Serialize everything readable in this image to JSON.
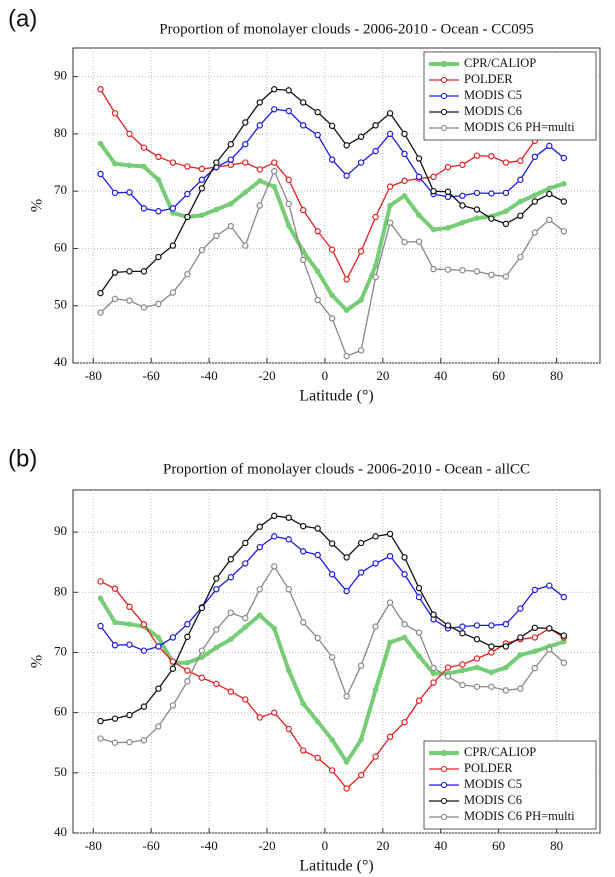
{
  "chart_data": [
    {
      "type": "line",
      "panel_label": "(a)",
      "title": "Proportion of monolayer clouds -   2006-2010 - Ocean - CC095",
      "xlabel": "Latitude (°)",
      "ylabel": "%",
      "xlim": [
        -87,
        95
      ],
      "ylim": [
        40,
        95
      ],
      "xticks": [
        -80,
        -60,
        -40,
        -20,
        0,
        20,
        40,
        60,
        80
      ],
      "yticks": [
        40,
        50,
        60,
        70,
        80,
        90
      ],
      "grid": true,
      "legend": "upper right",
      "x": [
        -77.5,
        -72.5,
        -67.5,
        -62.5,
        -57.5,
        -52.5,
        -47.5,
        -42.5,
        -37.5,
        -32.5,
        -27.5,
        -22.5,
        -17.5,
        -12.5,
        -7.5,
        -2.5,
        2.5,
        7.5,
        12.5,
        17.5,
        22.5,
        27.5,
        32.5,
        37.5,
        42.5,
        47.5,
        52.5,
        57.5,
        62.5,
        67.5,
        72.5,
        77.5,
        82.5
      ],
      "series": [
        {
          "name": "CPR/CALIOP",
          "color": "#77cc77",
          "values": [
            78.3,
            74.8,
            74.5,
            74.3,
            72,
            66.2,
            65.5,
            65.8,
            66.8,
            67.8,
            69.8,
            71.8,
            70.8,
            64,
            59.5,
            56,
            51.8,
            49.2,
            51,
            57,
            67.5,
            69.2,
            65.8,
            63.3,
            63.6,
            64.5,
            65.3,
            65.6,
            66.5,
            68.2,
            69.3,
            70.5,
            71.3
          ]
        },
        {
          "name": "POLDER",
          "color": "#e52020",
          "values": [
            87.8,
            83.6,
            80,
            77.6,
            76,
            75,
            74.3,
            73.9,
            74.2,
            74.6,
            75,
            73.8,
            75,
            72,
            66.7,
            63,
            59.8,
            54.6,
            59.5,
            65.5,
            70.8,
            71.8,
            72.2,
            72.5,
            74.2,
            74.6,
            76.2,
            76.1,
            75,
            75.3,
            78.8,
            null,
            null
          ]
        },
        {
          "name": "MODIS C5",
          "color": "#1a1aee",
          "values": [
            73,
            69.7,
            69.8,
            67,
            66.5,
            67,
            69.5,
            72,
            74.2,
            75.5,
            78.2,
            81.5,
            84.3,
            84,
            81.5,
            79.8,
            75.5,
            72.7,
            75,
            77,
            80,
            76.5,
            72.5,
            69.5,
            69,
            69.2,
            69.7,
            69.6,
            69.7,
            72,
            76,
            77.9,
            75.8
          ]
        },
        {
          "name": "MODIS C6",
          "color": "#111111",
          "values": [
            52.2,
            55.8,
            56,
            56,
            58.5,
            60.5,
            65.5,
            70.5,
            75,
            78.2,
            82,
            85.5,
            87.8,
            87.6,
            85.5,
            83.8,
            81.4,
            78,
            79.5,
            81.5,
            83.6,
            80,
            75.7,
            70,
            69.9,
            67.5,
            66.8,
            65.2,
            64.3,
            65.7,
            68.2,
            69.5,
            68.2
          ]
        },
        {
          "name": "MODIS C6 PH=multi",
          "color": "#888888",
          "values": [
            48.8,
            51.2,
            50.9,
            49.7,
            50.3,
            52.3,
            55.5,
            59.7,
            62.2,
            63.9,
            60.5,
            67.5,
            73.5,
            67.8,
            58,
            51,
            47.8,
            41.2,
            42.2,
            55,
            64.5,
            61.1,
            61.2,
            56.4,
            56.3,
            56.2,
            56,
            55.4,
            55.1,
            58.5,
            62.8,
            65,
            63
          ]
        }
      ]
    },
    {
      "type": "line",
      "panel_label": "(b)",
      "title": "Proportion of monolayer clouds -   2006-2010 - Ocean - allCC",
      "xlabel": "Latitude (°)",
      "ylabel": "%",
      "xlim": [
        -87,
        95
      ],
      "ylim": [
        40,
        97
      ],
      "xticks": [
        -80,
        -60,
        -40,
        -20,
        0,
        20,
        40,
        60,
        80
      ],
      "yticks": [
        40,
        50,
        60,
        70,
        80,
        90
      ],
      "grid": true,
      "legend": "lower right",
      "x": [
        -77.5,
        -72.5,
        -67.5,
        -62.5,
        -57.5,
        -52.5,
        -47.5,
        -42.5,
        -37.5,
        -32.5,
        -27.5,
        -22.5,
        -17.5,
        -12.5,
        -7.5,
        -2.5,
        2.5,
        7.5,
        12.5,
        17.5,
        22.5,
        27.5,
        32.5,
        37.5,
        42.5,
        47.5,
        52.5,
        57.5,
        62.5,
        67.5,
        72.5,
        77.5,
        82.5
      ],
      "series": [
        {
          "name": "CPR/CALIOP",
          "color": "#77cc77",
          "values": [
            79,
            75,
            74.7,
            74.3,
            72.5,
            68.3,
            68.3,
            69.2,
            70.8,
            72.2,
            74.2,
            76.2,
            74,
            67,
            61.5,
            58.5,
            55.5,
            51.8,
            55.5,
            63.8,
            71.7,
            72.5,
            69.4,
            66.5,
            66.5,
            67,
            67.5,
            66.7,
            67.5,
            69.6,
            70.2,
            71,
            71.8
          ]
        },
        {
          "name": "POLDER",
          "color": "#e52020",
          "values": [
            81.8,
            80.6,
            77.6,
            74.7,
            71,
            68.5,
            67,
            65.8,
            64.8,
            63.5,
            62.2,
            59.2,
            60,
            57.3,
            53.7,
            52.5,
            50.4,
            47.4,
            49.6,
            52.7,
            56,
            58.4,
            62,
            65,
            67.5,
            68,
            69,
            70,
            71.5,
            72.2,
            72.5,
            74,
            72.5
          ]
        },
        {
          "name": "MODIS C5",
          "color": "#1a1aee",
          "values": [
            74.4,
            71.2,
            71.3,
            70.3,
            71,
            72.5,
            74.7,
            77.5,
            80.5,
            82.5,
            84.8,
            87.5,
            89.3,
            88.8,
            86.8,
            86.2,
            83,
            80.2,
            83.3,
            84.8,
            86,
            83,
            79.2,
            75.5,
            74,
            74.3,
            74.5,
            74.5,
            74.7,
            77.3,
            80.4,
            81.1,
            79.2
          ]
        },
        {
          "name": "MODIS C6",
          "color": "#111111",
          "values": [
            58.6,
            59,
            59.6,
            61,
            64,
            67.3,
            72.6,
            77.4,
            82.3,
            85.5,
            88.2,
            90.9,
            92.7,
            92.4,
            91,
            90.6,
            88.1,
            85.8,
            88.2,
            89.3,
            89.7,
            85.8,
            80.7,
            76.3,
            74.5,
            73.2,
            72.2,
            71,
            71,
            72.5,
            74.1,
            74,
            72.8
          ]
        },
        {
          "name": "MODIS C6 PH=multi",
          "color": "#888888",
          "values": [
            55.7,
            55,
            55.1,
            55.4,
            57.7,
            61.2,
            65.2,
            70.3,
            73.8,
            76.6,
            75.7,
            80.5,
            84.3,
            80.5,
            75,
            72.4,
            69.2,
            62.7,
            67.8,
            74.3,
            78.3,
            74.7,
            73.3,
            67.4,
            66,
            64.6,
            64.3,
            64.3,
            63.7,
            64,
            67.4,
            70.5,
            68.3
          ]
        }
      ]
    }
  ]
}
